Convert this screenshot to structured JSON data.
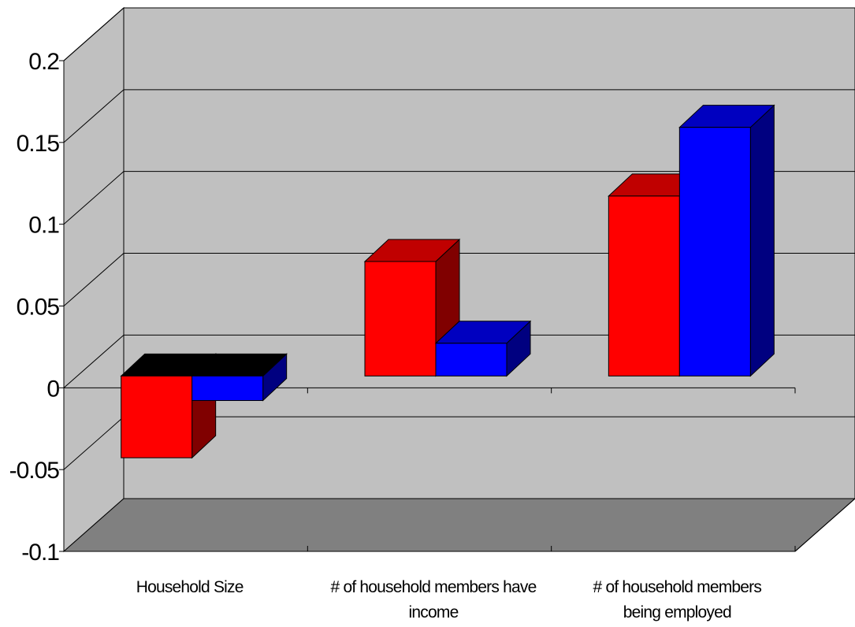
{
  "chart_data": {
    "type": "bar",
    "style": "3d-clustered-column",
    "categories": [
      [
        "Household Size"
      ],
      [
        "# of household members have",
        "income"
      ],
      [
        "# of household members",
        "being employed"
      ]
    ],
    "series": [
      {
        "color": "#ff0000",
        "values": [
          -0.05,
          0.07,
          0.11
        ]
      },
      {
        "color": "#0000ff",
        "values": [
          -0.015,
          0.02,
          0.152
        ]
      }
    ],
    "ylim": [
      -0.1,
      0.2
    ],
    "yticks": [
      "-0.1",
      "-0.05",
      "0",
      "0.05",
      "0.1",
      "0.15",
      "0.2"
    ],
    "grid": true,
    "title": "",
    "xlabel": "",
    "ylabel": "",
    "colors": {
      "back_wall": "#c0c0c0",
      "side_wall": "#c0c0c0",
      "floor": "#808080",
      "red_top": "#c00000",
      "red_side": "#800000",
      "blue_top": "#0000c0",
      "blue_side": "#000080"
    }
  }
}
